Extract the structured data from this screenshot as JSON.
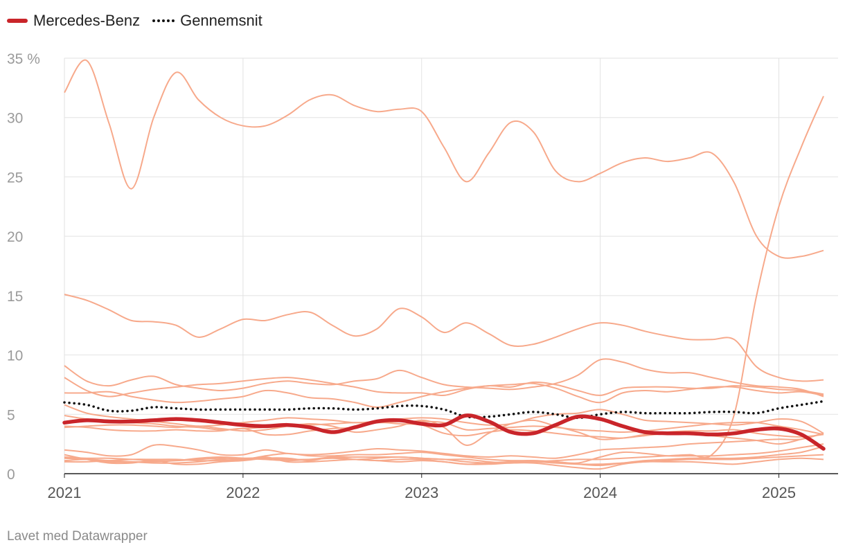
{
  "chart_data": {
    "type": "line",
    "title": "",
    "xlabel": "",
    "ylabel": "",
    "x_unit": "year",
    "xlim": [
      2021.0,
      2025.25
    ],
    "ylim": [
      0,
      35
    ],
    "y_ticks": [
      0,
      5,
      10,
      15,
      20,
      25,
      30,
      35
    ],
    "y_tick_labels": [
      "0",
      "5",
      "10",
      "15",
      "20",
      "25",
      "30",
      "35 %"
    ],
    "x_ticks": [
      2021,
      2022,
      2023,
      2024,
      2025
    ],
    "x_tick_labels": [
      "2021",
      "2022",
      "2023",
      "2024",
      "2025"
    ],
    "grid": true,
    "legend_position": "top-left",
    "colors": {
      "highlight": "#c9252a",
      "average": "#111111",
      "other": "#f7a98b",
      "grid": "#e2e2e2",
      "axis": "#222222"
    },
    "legend": [
      {
        "name": "Mercedes-Benz",
        "style": "solid"
      },
      {
        "name": "Gennemsnit",
        "style": "dotted"
      }
    ],
    "x": [
      2021.0,
      2021.125,
      2021.25,
      2021.375,
      2021.5,
      2021.625,
      2021.75,
      2021.875,
      2022.0,
      2022.125,
      2022.25,
      2022.375,
      2022.5,
      2022.625,
      2022.75,
      2022.875,
      2023.0,
      2023.125,
      2023.25,
      2023.375,
      2023.5,
      2023.625,
      2023.75,
      2023.875,
      2024.0,
      2024.125,
      2024.25,
      2024.375,
      2024.5,
      2024.625,
      2024.75,
      2024.875,
      2025.0,
      2025.125,
      2025.25
    ],
    "series": [
      {
        "name": "Mercedes-Benz",
        "role": "highlight",
        "values": [
          4.3,
          4.5,
          4.4,
          4.4,
          4.5,
          4.6,
          4.5,
          4.3,
          4.1,
          4.0,
          4.1,
          3.9,
          3.5,
          3.9,
          4.4,
          4.5,
          4.2,
          4.1,
          4.9,
          4.4,
          3.5,
          3.4,
          4.1,
          4.8,
          4.6,
          4.0,
          3.5,
          3.4,
          3.4,
          3.3,
          3.4,
          3.7,
          3.8,
          3.3,
          2.1
        ]
      },
      {
        "name": "Gennemsnit",
        "role": "average",
        "values": [
          6.0,
          5.8,
          5.3,
          5.3,
          5.6,
          5.5,
          5.4,
          5.4,
          5.4,
          5.4,
          5.4,
          5.5,
          5.5,
          5.4,
          5.5,
          5.7,
          5.7,
          5.4,
          4.8,
          4.8,
          5.0,
          5.2,
          5.0,
          4.7,
          5.0,
          5.2,
          5.1,
          5.1,
          5.1,
          5.2,
          5.2,
          5.1,
          5.5,
          5.8,
          6.1
        ]
      },
      {
        "name": "",
        "role": "other",
        "values": [
          32.1,
          34.8,
          29.5,
          24.0,
          30.0,
          33.8,
          31.5,
          30.0,
          29.3,
          29.3,
          30.2,
          31.5,
          31.9,
          31.0,
          30.5,
          30.7,
          30.5,
          27.5,
          24.6,
          27.0,
          29.6,
          28.8,
          25.5,
          24.6,
          25.3,
          26.2,
          26.6,
          26.3,
          26.6,
          27.0,
          24.5,
          20.0,
          18.3,
          18.3,
          18.8
        ]
      },
      {
        "name": "",
        "role": "other",
        "values": [
          15.1,
          14.6,
          13.8,
          12.9,
          12.8,
          12.5,
          11.5,
          12.2,
          13.0,
          12.9,
          13.4,
          13.6,
          12.5,
          11.6,
          12.2,
          13.9,
          13.2,
          11.9,
          12.7,
          11.8,
          10.8,
          10.9,
          11.5,
          12.2,
          12.7,
          12.5,
          12.0,
          11.6,
          11.3,
          11.3,
          11.3,
          9.0,
          8.1,
          7.8,
          7.9
        ]
      },
      {
        "name": "",
        "role": "other",
        "values": [
          1.1,
          1.2,
          1.1,
          1.0,
          0.9,
          0.9,
          1.0,
          1.2,
          1.3,
          1.3,
          1.2,
          1.2,
          1.3,
          1.2,
          1.3,
          1.4,
          1.3,
          1.2,
          1.2,
          1.0,
          0.9,
          1.0,
          1.1,
          1.2,
          1.2,
          1.3,
          1.4,
          1.5,
          1.6,
          1.6,
          5.0,
          15.0,
          22.5,
          27.5,
          31.8
        ]
      },
      {
        "name": "",
        "role": "other",
        "values": [
          9.1,
          7.8,
          7.4,
          7.9,
          8.2,
          7.5,
          7.2,
          7.0,
          7.2,
          7.6,
          7.8,
          7.6,
          7.5,
          7.8,
          8.0,
          8.7,
          8.1,
          7.5,
          7.3,
          7.2,
          7.1,
          7.3,
          7.6,
          8.3,
          9.6,
          9.4,
          8.8,
          8.5,
          8.5,
          8.1,
          7.7,
          7.4,
          7.3,
          7.1,
          6.5
        ]
      },
      {
        "name": "",
        "role": "other",
        "values": [
          8.1,
          7.0,
          6.5,
          6.8,
          7.1,
          7.3,
          7.5,
          7.6,
          7.8,
          8.0,
          8.1,
          7.9,
          7.6,
          7.3,
          6.9,
          6.8,
          6.8,
          6.6,
          7.1,
          7.4,
          7.3,
          7.7,
          7.5,
          7.0,
          6.6,
          7.2,
          7.3,
          7.3,
          7.2,
          7.2,
          7.4,
          7.3,
          7.1,
          7.0,
          6.7
        ]
      },
      {
        "name": "",
        "role": "other",
        "values": [
          6.8,
          6.8,
          6.9,
          6.5,
          6.2,
          6.0,
          6.1,
          6.3,
          6.5,
          7.0,
          6.8,
          6.4,
          6.3,
          6.0,
          5.6,
          6.0,
          6.5,
          6.9,
          7.2,
          7.4,
          7.5,
          7.6,
          7.2,
          6.5,
          6.0,
          6.8,
          7.0,
          6.9,
          7.1,
          7.3,
          7.3,
          7.0,
          6.8,
          6.9,
          6.6
        ]
      },
      {
        "name": "",
        "role": "other",
        "values": [
          5.8,
          5.1,
          4.8,
          4.6,
          4.4,
          4.2,
          4.0,
          4.1,
          4.3,
          4.5,
          4.7,
          4.6,
          4.5,
          4.3,
          4.4,
          4.6,
          4.7,
          4.6,
          4.3,
          4.1,
          4.2,
          4.7,
          5.0,
          5.1,
          5.4,
          5.0,
          4.5,
          4.4,
          4.3,
          4.2,
          4.1,
          4.3,
          4.6,
          4.4,
          3.4
        ]
      },
      {
        "name": "",
        "role": "other",
        "values": [
          4.9,
          4.6,
          4.5,
          4.3,
          4.2,
          4.0,
          3.9,
          3.7,
          3.8,
          3.9,
          4.0,
          4.1,
          4.2,
          4.3,
          4.3,
          4.4,
          4.4,
          4.3,
          3.7,
          3.8,
          3.9,
          4.0,
          3.9,
          3.7,
          3.6,
          3.5,
          3.6,
          3.8,
          4.0,
          4.2,
          4.3,
          4.3,
          4.0,
          3.7,
          3.3
        ]
      },
      {
        "name": "",
        "role": "other",
        "values": [
          4.0,
          3.9,
          3.7,
          3.6,
          3.6,
          3.7,
          3.6,
          3.6,
          3.8,
          3.3,
          3.3,
          3.6,
          3.8,
          3.9,
          4.3,
          4.2,
          4.1,
          3.4,
          3.2,
          3.5,
          3.7,
          3.6,
          3.4,
          3.2,
          3.1,
          3.0,
          3.3,
          3.5,
          3.6,
          3.6,
          3.7,
          3.4,
          3.2,
          3.1,
          3.3
        ]
      },
      {
        "name": "",
        "role": "other",
        "values": [
          3.9,
          4.0,
          4.1,
          4.1,
          4.0,
          3.9,
          4.0,
          3.8,
          3.6,
          3.7,
          4.0,
          4.2,
          4.0,
          3.5,
          3.7,
          4.0,
          4.5,
          3.9,
          2.4,
          3.4,
          4.2,
          4.5,
          4.0,
          3.5,
          2.9,
          3.0,
          3.2,
          3.4,
          3.4,
          3.2,
          3.0,
          2.8,
          2.5,
          2.9,
          3.4
        ]
      },
      {
        "name": "",
        "role": "other",
        "values": [
          2.0,
          1.8,
          1.5,
          1.6,
          2.4,
          2.3,
          2.0,
          1.6,
          1.6,
          2.0,
          1.7,
          1.6,
          1.7,
          1.9,
          2.1,
          2.0,
          1.9,
          1.7,
          1.5,
          1.4,
          1.5,
          1.4,
          1.3,
          1.6,
          2.0,
          2.1,
          2.2,
          2.3,
          2.5,
          2.6,
          2.7,
          2.8,
          2.9,
          2.9,
          3.4
        ]
      },
      {
        "name": "",
        "role": "other",
        "values": [
          1.4,
          1.3,
          1.3,
          1.2,
          1.1,
          1.1,
          1.2,
          1.3,
          1.2,
          1.5,
          1.7,
          1.5,
          1.5,
          1.6,
          1.6,
          1.7,
          1.8,
          1.6,
          1.4,
          1.2,
          1.1,
          1.1,
          1.0,
          0.9,
          1.4,
          1.8,
          1.7,
          1.5,
          1.5,
          1.5,
          1.6,
          1.7,
          1.9,
          2.2,
          2.5
        ]
      },
      {
        "name": "",
        "role": "other",
        "values": [
          1.3,
          1.2,
          1.0,
          1.0,
          1.0,
          1.1,
          1.3,
          1.4,
          1.3,
          1.2,
          1.1,
          1.2,
          1.4,
          1.4,
          1.4,
          1.4,
          1.3,
          1.2,
          1.0,
          0.9,
          1.0,
          1.1,
          1.0,
          0.8,
          0.7,
          0.9,
          1.1,
          1.2,
          1.3,
          1.3,
          1.3,
          1.4,
          1.6,
          1.8,
          2.3
        ]
      },
      {
        "name": "",
        "role": "other",
        "values": [
          1.0,
          1.0,
          1.1,
          1.2,
          1.2,
          1.2,
          1.1,
          1.1,
          1.2,
          1.4,
          1.0,
          1.0,
          1.1,
          1.2,
          1.1,
          1.2,
          1.2,
          1.0,
          0.8,
          0.9,
          1.0,
          1.0,
          0.9,
          0.8,
          0.8,
          0.9,
          1.0,
          1.1,
          1.2,
          1.2,
          1.2,
          1.3,
          1.4,
          1.5,
          1.6
        ]
      },
      {
        "name": "",
        "role": "other",
        "values": [
          1.6,
          1.2,
          0.9,
          0.9,
          1.1,
          0.8,
          0.8,
          1.0,
          1.1,
          1.3,
          1.3,
          1.1,
          1.4,
          1.2,
          1.1,
          1.0,
          1.1,
          1.0,
          0.8,
          0.8,
          0.9,
          0.9,
          0.7,
          0.5,
          0.4,
          0.8,
          1.0,
          1.0,
          1.0,
          0.9,
          0.8,
          1.0,
          1.2,
          1.3,
          1.2
        ]
      }
    ]
  },
  "footer": {
    "credit": "Lavet med Datawrapper"
  }
}
